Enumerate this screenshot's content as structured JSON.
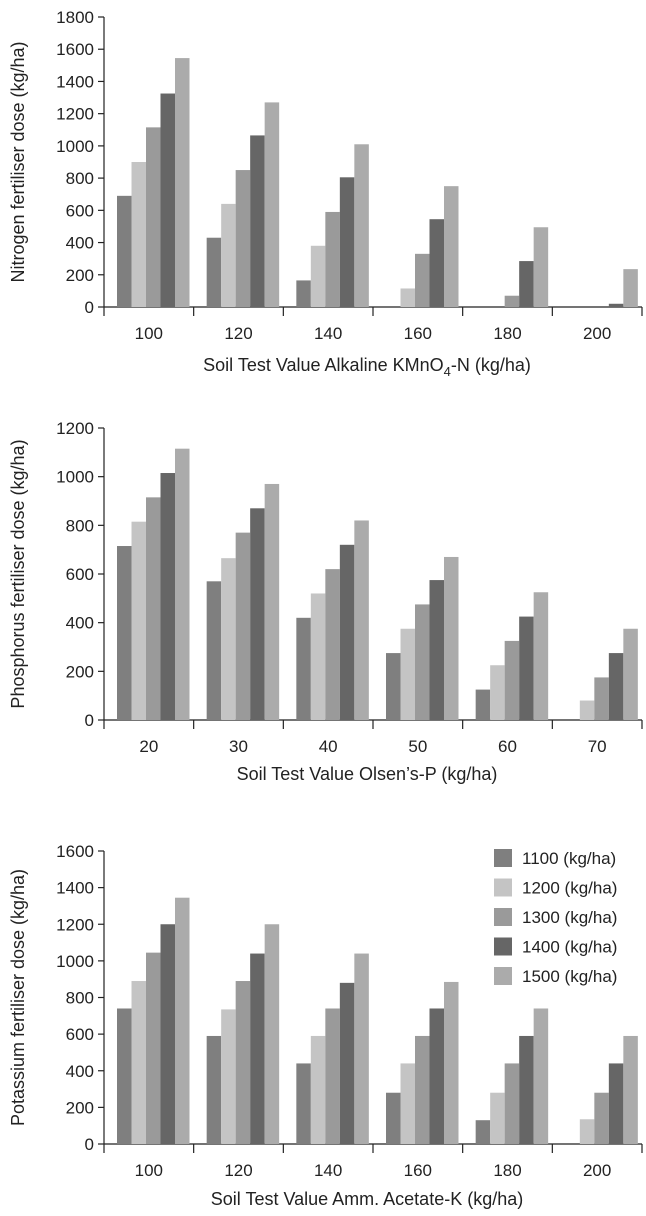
{
  "chart_data": [
    {
      "type": "bar",
      "categories": [
        "100",
        "120",
        "140",
        "160",
        "180",
        "200"
      ],
      "ylabel": "Nitrogen fertiliser dose (kg/ha)",
      "xlabel_parts": [
        "Soil Test Value Alkaline KMnO",
        "4",
        "-N (kg/ha)"
      ],
      "ylim": [
        0,
        1800
      ],
      "yticks": [
        "0",
        "200",
        "400",
        "600",
        "800",
        "1000",
        "1200",
        "1400",
        "1600",
        "1800"
      ],
      "series": [
        {
          "name": "1100 (kg/ha)",
          "values": [
            690,
            430,
            165,
            0,
            0,
            0
          ]
        },
        {
          "name": "1200 (kg/ha)",
          "values": [
            900,
            640,
            380,
            115,
            0,
            0
          ]
        },
        {
          "name": "1300 (kg/ha)",
          "values": [
            1115,
            850,
            590,
            330,
            70,
            0
          ]
        },
        {
          "name": "1400 (kg/ha)",
          "values": [
            1325,
            1065,
            805,
            545,
            285,
            20
          ]
        },
        {
          "name": "1500 (kg/ha)",
          "values": [
            1545,
            1270,
            1010,
            750,
            495,
            235
          ]
        }
      ]
    },
    {
      "type": "bar",
      "categories": [
        "20",
        "30",
        "40",
        "50",
        "60",
        "70"
      ],
      "ylabel": "Phosphorus fertiliser dose (kg/ha)",
      "xlabel_parts": [
        "Soil Test Value Olsen’s-P (kg/ha)",
        "",
        ""
      ],
      "ylim": [
        0,
        1200
      ],
      "yticks": [
        "0",
        "200",
        "400",
        "600",
        "800",
        "1000",
        "1200"
      ],
      "series": [
        {
          "name": "1100 (kg/ha)",
          "values": [
            715,
            570,
            420,
            275,
            125,
            0
          ]
        },
        {
          "name": "1200 (kg/ha)",
          "values": [
            815,
            665,
            520,
            375,
            225,
            80
          ]
        },
        {
          "name": "1300 (kg/ha)",
          "values": [
            915,
            770,
            620,
            475,
            325,
            175
          ]
        },
        {
          "name": "1400 (kg/ha)",
          "values": [
            1015,
            870,
            720,
            575,
            425,
            275
          ]
        },
        {
          "name": "1500 (kg/ha)",
          "values": [
            1115,
            970,
            820,
            670,
            525,
            375
          ]
        }
      ]
    },
    {
      "type": "bar",
      "categories": [
        "100",
        "120",
        "140",
        "160",
        "180",
        "200"
      ],
      "ylabel": "Potassium fertiliser dose (kg/ha)",
      "xlabel_parts": [
        "Soil Test Value Amm. Acetate-K (kg/ha)",
        "",
        ""
      ],
      "ylim": [
        0,
        1600
      ],
      "yticks": [
        "0",
        "200",
        "400",
        "600",
        "800",
        "1000",
        "1200",
        "1400",
        "1600"
      ],
      "legend": "top-right",
      "series": [
        {
          "name": "1100 (kg/ha)",
          "values": [
            740,
            590,
            440,
            280,
            130,
            0
          ]
        },
        {
          "name": "1200 (kg/ha)",
          "values": [
            890,
            735,
            590,
            440,
            280,
            135
          ]
        },
        {
          "name": "1300 (kg/ha)",
          "values": [
            1045,
            890,
            740,
            590,
            440,
            280
          ]
        },
        {
          "name": "1400 (kg/ha)",
          "values": [
            1200,
            1040,
            880,
            740,
            590,
            440
          ]
        },
        {
          "name": "1500 (kg/ha)",
          "values": [
            1345,
            1200,
            1040,
            885,
            740,
            590
          ]
        }
      ]
    }
  ],
  "series_colors": [
    "#7f7f7f",
    "#c4c4c4",
    "#9a9a9a",
    "#666666",
    "#ababab"
  ]
}
